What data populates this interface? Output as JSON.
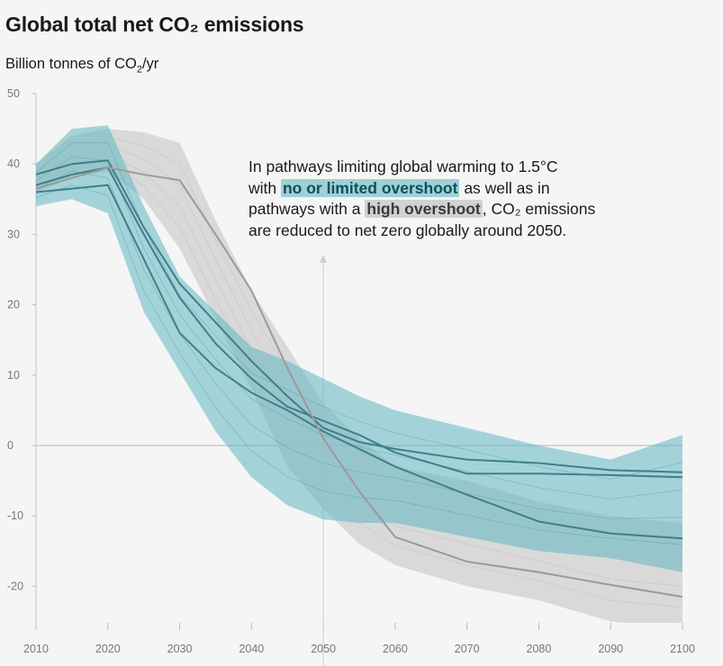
{
  "title": "Global total net CO₂ emissions",
  "unit": {
    "prefix": "Billion tonnes of CO",
    "sub": "2",
    "suffix": "/yr"
  },
  "annotation": {
    "line1": "In pathways limiting global warming to 1.5°C",
    "line2_pre": "with ",
    "line2_hl": "no or limited overshoot",
    "line2_post": " as well as in",
    "line3_pre": "pathways with a ",
    "line3_hl": "high overshoot",
    "line3_post": ", CO₂ emissions",
    "line4": "are reduced to net zero globally around 2050."
  },
  "colors": {
    "teal_band": "#5fb6c1",
    "teal_line": "#3f7f88",
    "grey_band": "#cfcfcf",
    "grey_line": "#9a9a9a"
  },
  "chart_data": {
    "type": "line",
    "title": "Global total net CO₂ emissions",
    "ylabel": "Billion tonnes of CO2/yr",
    "xlabel": "",
    "xlim": [
      2010,
      2100
    ],
    "ylim": [
      -25,
      50
    ],
    "xticks": [
      2010,
      2020,
      2030,
      2040,
      2050,
      2060,
      2070,
      2080,
      2090,
      2100
    ],
    "yticks": [
      50,
      40,
      30,
      20,
      10,
      0,
      -10,
      -20
    ],
    "x": [
      2010,
      2015,
      2020,
      2025,
      2030,
      2035,
      2040,
      2045,
      2050,
      2055,
      2060,
      2070,
      2080,
      2090,
      2100
    ],
    "bands": [
      {
        "name": "high overshoot range",
        "color": "grey",
        "upper": [
          40,
          44,
          45,
          44.5,
          43,
          32,
          22,
          14,
          6,
          1,
          -3,
          -5,
          -8,
          -10,
          -11
        ],
        "lower": [
          36,
          38,
          39,
          35,
          28,
          18,
          8,
          -3,
          -9,
          -14,
          -17,
          -20,
          -22,
          -25,
          -26
        ]
      },
      {
        "name": "no or limited overshoot range",
        "color": "teal",
        "upper": [
          40,
          45,
          45.5,
          34,
          24,
          19,
          14,
          12,
          9.5,
          7,
          5,
          2.5,
          0,
          -2,
          1.5
        ],
        "lower": [
          34,
          35,
          33,
          19,
          10.5,
          2,
          -4.5,
          -8.5,
          -10.5,
          -11,
          -11,
          -13,
          -15,
          -16,
          -18
        ]
      }
    ],
    "series": [
      {
        "values": [
          38.5,
          40,
          40.5,
          31,
          23,
          17.5,
          12,
          7,
          2.5,
          0.5,
          -0.5,
          -2,
          -2.5,
          -3.5,
          -3.8
        ]
      },
      {
        "values": [
          37,
          38.5,
          39.5,
          30,
          21,
          14.5,
          9.5,
          5.5,
          3.5,
          1.5,
          -1,
          -4,
          -4,
          -4.2,
          -4.5
        ]
      },
      {
        "values": [
          36,
          36.5,
          37,
          26.5,
          16,
          11,
          7.5,
          5,
          2,
          -0.5,
          -3,
          -7,
          -10.8,
          -12.5,
          -13.2
        ]
      },
      {
        "values": [
          36.5,
          38,
          39.5,
          38.5,
          37.7,
          30,
          22,
          11,
          1,
          -6.5,
          -13,
          -16.5,
          -18,
          -19.8,
          -21.5
        ]
      }
    ]
  }
}
